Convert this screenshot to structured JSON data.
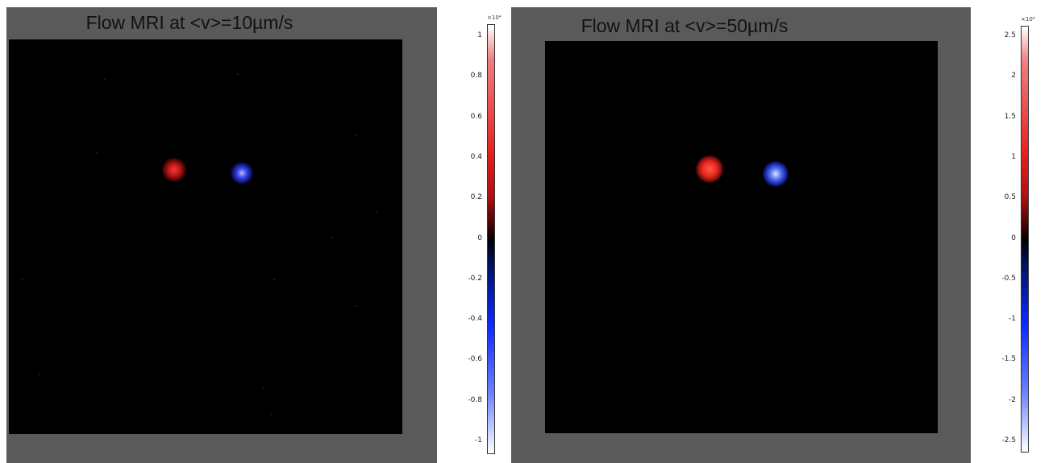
{
  "panels": [
    {
      "title": "Flow MRI at <v>=10µm/s",
      "colorbar": {
        "exponent": "×10⁴",
        "ticks": [
          "1",
          "0.8",
          "0.6",
          "0.4",
          "0.2",
          "0",
          "-0.2",
          "-0.4",
          "-0.6",
          "-0.8",
          "-1"
        ],
        "range": [
          -1,
          1
        ]
      }
    },
    {
      "title": "Flow MRI at <v>=50µm/s",
      "colorbar": {
        "exponent": "×10⁴",
        "ticks": [
          "2.5",
          "2",
          "1.5",
          "1",
          "0.5",
          "0",
          "-0.5",
          "-1",
          "-1.5",
          "-2",
          "-2.5"
        ],
        "range": [
          -2.5,
          2.5
        ]
      }
    }
  ],
  "colors": {
    "frame_gray": "#5a5a5a",
    "positive": "#e52020",
    "negative": "#2040ff",
    "background": "#000000"
  }
}
